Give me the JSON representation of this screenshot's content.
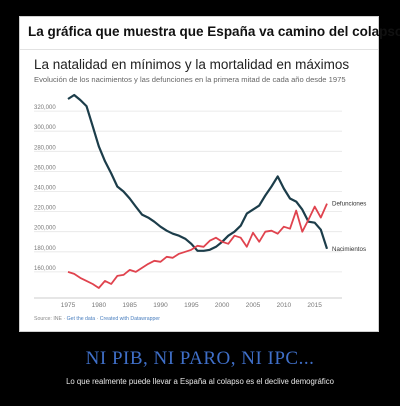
{
  "header": {
    "title": "La gráfica que muestra que España va camino del colapso"
  },
  "footer": {
    "source_prefix": "Source: INE · ",
    "source_link1": "Get the data",
    "source_sep": " · ",
    "source_link2": "Created with Datawrapper"
  },
  "caption": {
    "title": "NI PIB, NI PARO, NI IPC...",
    "subtitle": "Lo que realmente puede llevar a España al colapso es el declive demográfico"
  },
  "colors": {
    "births": "#1c3d4a",
    "deaths": "#e0434e",
    "grid": "#e6e6e6",
    "axis_text": "#777777"
  },
  "chart_data": {
    "type": "line",
    "title": "La natalidad en mínimos y la mortalidad en máximos",
    "subtitle": "Evolución de los nacimientos y las defunciones en la primera mitad de cada año desde 1975",
    "xlim": [
      1975,
      2017
    ],
    "ylim": [
      140000,
      340000
    ],
    "x_ticks": [
      1975,
      1980,
      1985,
      1990,
      1995,
      2000,
      2005,
      2010,
      2015
    ],
    "y_ticks": [
      160000,
      180000,
      200000,
      220000,
      240000,
      260000,
      280000,
      300000,
      320000
    ],
    "y_tick_labels": [
      "160,000",
      "180,000",
      "200,000",
      "220,000",
      "240,000",
      "260,000",
      "280,000",
      "300,000",
      "320,000"
    ],
    "grid": true,
    "series": [
      {
        "name": "Nacimientos",
        "color": "#1c3d4a",
        "x": [
          1975,
          1976,
          1977,
          1978,
          1979,
          1980,
          1981,
          1982,
          1983,
          1984,
          1985,
          1986,
          1987,
          1988,
          1989,
          1990,
          1991,
          1992,
          1993,
          1994,
          1995,
          1996,
          1997,
          1998,
          1999,
          2000,
          2001,
          2002,
          2003,
          2004,
          2005,
          2006,
          2007,
          2008,
          2009,
          2010,
          2011,
          2012,
          2013,
          2014,
          2015,
          2016,
          2017
        ],
        "values": [
          332000,
          336000,
          331000,
          325000,
          305000,
          285000,
          270000,
          258000,
          245000,
          240000,
          233000,
          225000,
          217000,
          214000,
          210000,
          205000,
          201000,
          198000,
          196000,
          193000,
          188000,
          181000,
          181000,
          182000,
          185000,
          190000,
          196000,
          200000,
          206000,
          218000,
          222000,
          226000,
          236000,
          245000,
          255000,
          243000,
          233000,
          230000,
          222000,
          210000,
          209000,
          202000,
          183000
        ]
      },
      {
        "name": "Defunciones",
        "color": "#e0434e",
        "x": [
          1975,
          1976,
          1977,
          1978,
          1979,
          1980,
          1981,
          1982,
          1983,
          1984,
          1985,
          1986,
          1987,
          1988,
          1989,
          1990,
          1991,
          1992,
          1993,
          1994,
          1995,
          1996,
          1997,
          1998,
          1999,
          2000,
          2001,
          2002,
          2003,
          2004,
          2005,
          2006,
          2007,
          2008,
          2009,
          2010,
          2011,
          2012,
          2013,
          2014,
          2015,
          2016,
          2017
        ],
        "values": [
          160000,
          158000,
          154000,
          151000,
          148000,
          144000,
          151000,
          148000,
          156000,
          157000,
          162000,
          160000,
          164000,
          168000,
          171000,
          170000,
          175000,
          174000,
          178000,
          180000,
          182000,
          186000,
          185000,
          191000,
          194000,
          190000,
          188000,
          196000,
          194000,
          185000,
          199000,
          190000,
          200000,
          201000,
          198000,
          205000,
          203000,
          221000,
          200000,
          212000,
          225000,
          214000,
          228000
        ]
      }
    ],
    "series_labels": [
      {
        "series": "Defunciones",
        "text": "Defunciones"
      },
      {
        "series": "Nacimientos",
        "text": "Nacimientos"
      }
    ]
  }
}
